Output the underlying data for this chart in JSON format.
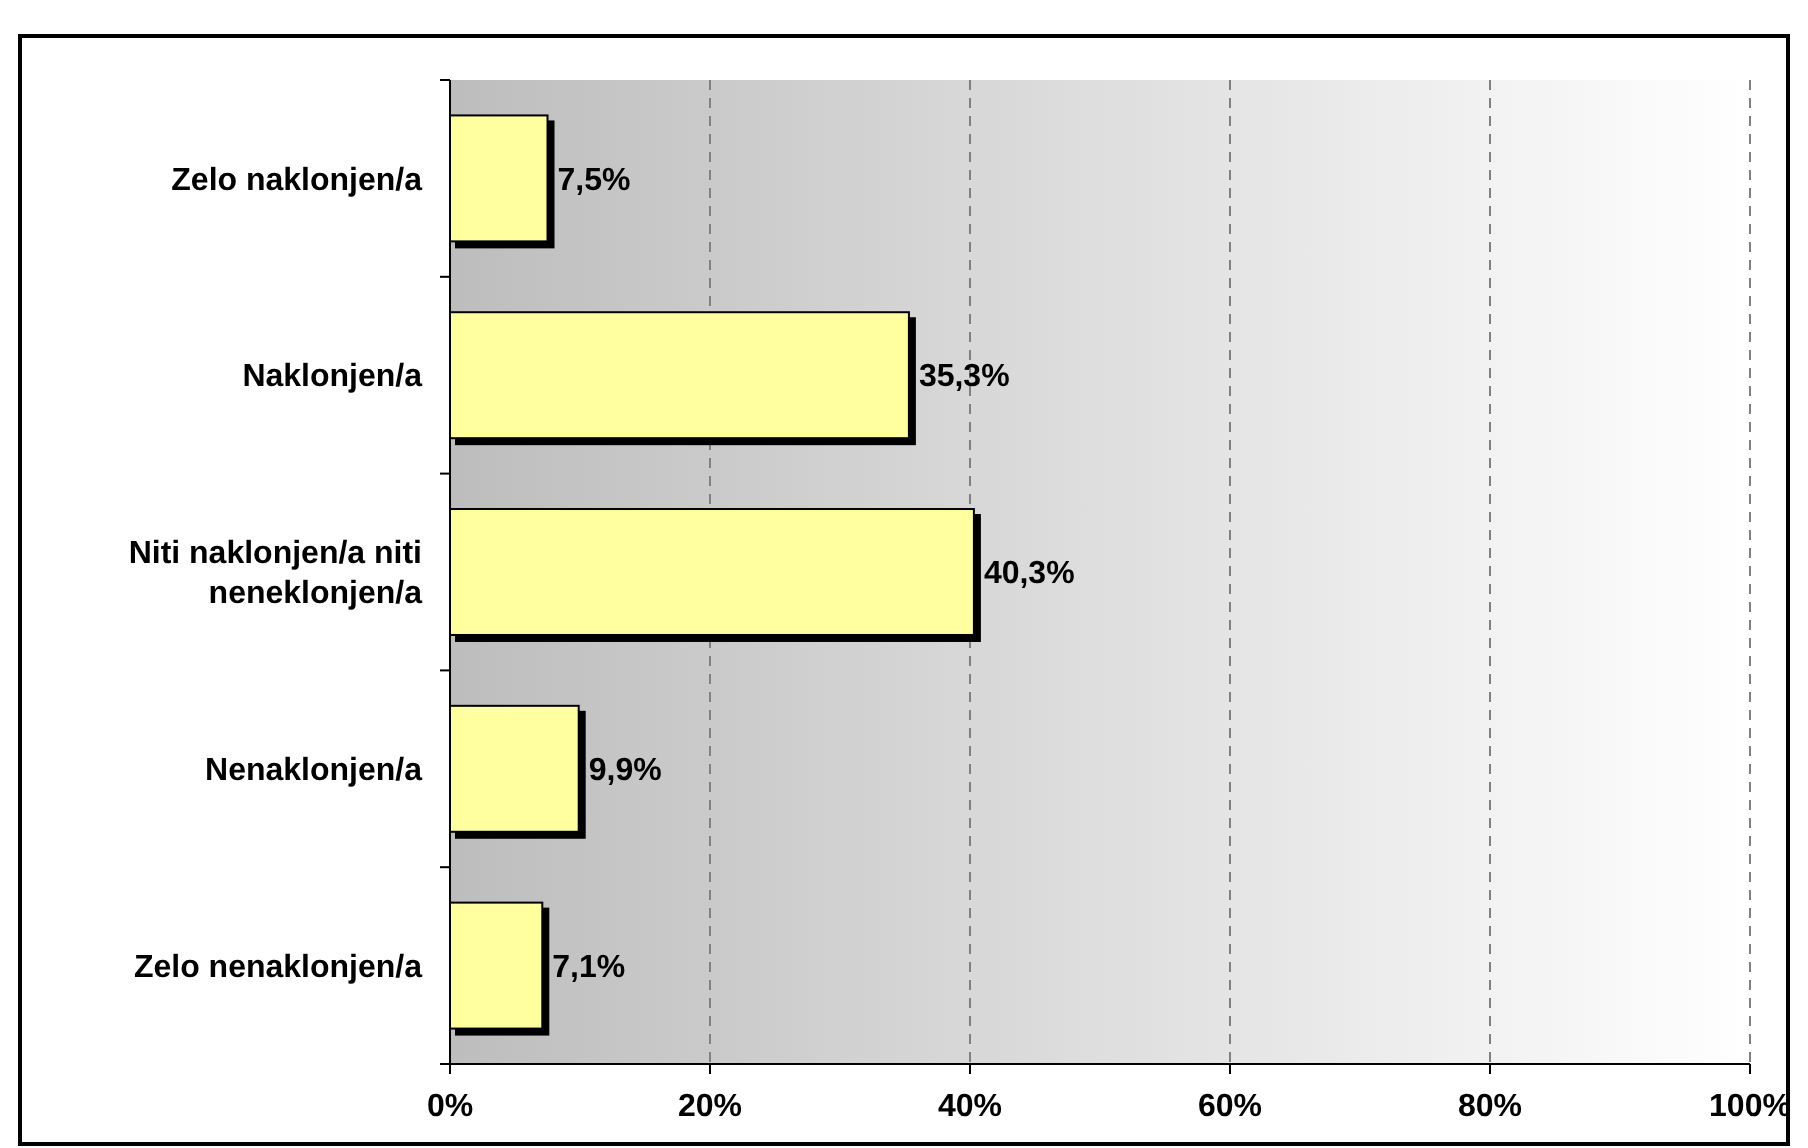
{
  "chart_data": {
    "type": "bar",
    "orientation": "horizontal",
    "categories": [
      "Zelo naklonjen/a",
      "Naklonjen/a",
      "Niti naklonjen/a niti neneklonjen/a",
      "Nenaklonjen/a",
      "Zelo nenaklonjen/a"
    ],
    "values": [
      7.5,
      35.3,
      40.3,
      9.9,
      7.1
    ],
    "value_labels": [
      "7,5%",
      "35,3%",
      "40,3%",
      "9,9%",
      "7,1%"
    ],
    "color": "#ffffa0",
    "xlim": [
      0,
      100
    ],
    "xticks": [
      {
        "value": 0,
        "label": "0%"
      },
      {
        "value": 20,
        "label": "20%"
      },
      {
        "value": 40,
        "label": "40%"
      },
      {
        "value": 60,
        "label": "60%"
      },
      {
        "value": 80,
        "label": "80%"
      },
      {
        "value": 100,
        "label": "100%"
      }
    ],
    "grid": "x"
  }
}
